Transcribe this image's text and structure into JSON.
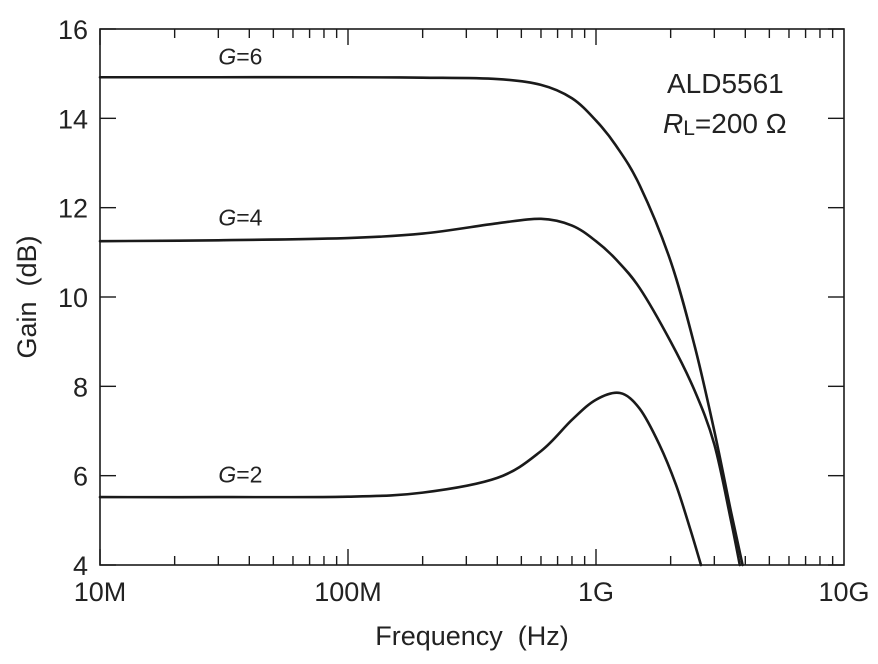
{
  "chart_data": {
    "type": "line",
    "title": "",
    "xlabel": "Frequency  (Hz)",
    "ylabel": "Gain  (dB)",
    "xscale": "log",
    "xlim": [
      10000000,
      10000000000
    ],
    "ylim": [
      4,
      16
    ],
    "grid": false,
    "legend": "none",
    "x_ticks": [
      {
        "value": 10000000,
        "label": "10M"
      },
      {
        "value": 100000000,
        "label": "100M"
      },
      {
        "value": 1000000000,
        "label": "1G"
      },
      {
        "value": 10000000000,
        "label": "10G"
      }
    ],
    "y_ticks": [
      4,
      6,
      8,
      10,
      12,
      14,
      16
    ],
    "annotations": {
      "part": "ALD5561",
      "rl_symbol": "R",
      "rl_subscript": "L",
      "rl_value": "=200 Ω"
    },
    "series": [
      {
        "name": "G=6",
        "label_g": "G",
        "label_rest": "=6",
        "label_x": 30000000,
        "label_y": 15.2,
        "x": [
          10000000,
          30000000,
          100000000,
          200000000,
          400000000,
          600000000,
          800000000,
          1000000000,
          1200000000,
          1500000000,
          2000000000,
          2500000000,
          3000000000,
          3500000000,
          3900000000
        ],
        "y": [
          14.92,
          14.92,
          14.92,
          14.91,
          14.88,
          14.75,
          14.45,
          13.95,
          13.4,
          12.5,
          10.8,
          8.9,
          7.0,
          5.2,
          4.0
        ]
      },
      {
        "name": "G=4",
        "label_g": "G",
        "label_rest": "=4",
        "label_x": 30000000,
        "label_y": 11.6,
        "x": [
          10000000,
          30000000,
          100000000,
          200000000,
          400000000,
          600000000,
          800000000,
          1000000000,
          1200000000,
          1500000000,
          2000000000,
          2500000000,
          3000000000,
          3500000000,
          3800000000
        ],
        "y": [
          11.25,
          11.27,
          11.32,
          11.42,
          11.65,
          11.75,
          11.6,
          11.25,
          10.85,
          10.2,
          9.0,
          7.9,
          6.7,
          5.0,
          4.0
        ]
      },
      {
        "name": "G=2",
        "label_g": "G",
        "label_rest": "=2",
        "label_x": 30000000,
        "label_y": 5.85,
        "x": [
          10000000,
          30000000,
          100000000,
          200000000,
          400000000,
          600000000,
          800000000,
          1000000000,
          1250000000,
          1500000000,
          1800000000,
          2100000000,
          2400000000,
          2650000000
        ],
        "y": [
          5.52,
          5.52,
          5.53,
          5.62,
          5.95,
          6.55,
          7.25,
          7.7,
          7.85,
          7.5,
          6.7,
          5.8,
          4.8,
          4.0
        ]
      }
    ]
  }
}
